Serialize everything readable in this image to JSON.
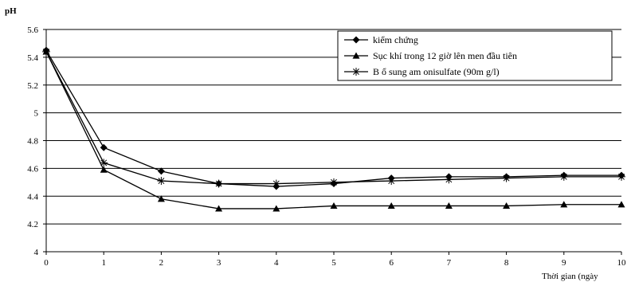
{
  "chart_data": {
    "type": "line",
    "title": "",
    "ylabel": "pH",
    "xlabel": "Thời gian (ngày",
    "x": [
      0,
      1,
      2,
      3,
      4,
      5,
      6,
      7,
      8,
      9,
      10
    ],
    "ylim": [
      4,
      5.6
    ],
    "xlim": [
      0,
      10
    ],
    "yticks": [
      4,
      4.2,
      4.4,
      4.6,
      4.8,
      5,
      5.2,
      5.4,
      5.6
    ],
    "ytick_labels": [
      "4",
      "4.2",
      "4.4",
      "4.6",
      "4.8",
      "5",
      "5.2",
      "5.4",
      "5.6"
    ],
    "xtick_labels": [
      "0",
      "1",
      "2",
      "3",
      "4",
      "5",
      "6",
      "7",
      "8",
      "9",
      "10"
    ],
    "grid": "horizontal",
    "legend_position": "top-right",
    "series": [
      {
        "name": "kiểm chứng",
        "marker": "diamond",
        "values": [
          5.45,
          4.75,
          4.58,
          4.49,
          4.47,
          4.49,
          4.53,
          4.54,
          4.54,
          4.55,
          4.55
        ]
      },
      {
        "name": "Sục khí trong 12 giờ lên men đầu tiên",
        "marker": "triangle",
        "values": [
          5.44,
          4.59,
          4.38,
          4.31,
          4.31,
          4.33,
          4.33,
          4.33,
          4.33,
          4.34,
          4.34
        ]
      },
      {
        "name": "B ổ sung am onisulfate (90m g/l)",
        "marker": "asterisk",
        "values": [
          5.44,
          4.64,
          4.51,
          4.49,
          4.49,
          4.5,
          4.51,
          4.52,
          4.53,
          4.54,
          4.54
        ]
      }
    ],
    "colors": {
      "line": "#000000",
      "grid": "#000000",
      "background": "#ffffff"
    }
  }
}
